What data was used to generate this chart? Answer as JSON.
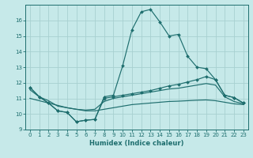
{
  "title": "",
  "xlabel": "Humidex (Indice chaleur)",
  "xlim": [
    -0.5,
    23.5
  ],
  "ylim": [
    9,
    17
  ],
  "yticks": [
    9,
    10,
    11,
    12,
    13,
    14,
    15,
    16
  ],
  "xticks": [
    0,
    1,
    2,
    3,
    4,
    5,
    6,
    7,
    8,
    9,
    10,
    11,
    12,
    13,
    14,
    15,
    16,
    17,
    18,
    19,
    20,
    21,
    22,
    23
  ],
  "bg_color": "#c6e9e9",
  "line_color": "#1e6e6e",
  "grid_color": "#b0d8d8",
  "series": [
    {
      "name": "peak_line",
      "x": [
        0,
        1,
        2,
        3,
        4,
        5,
        6,
        7,
        8,
        9,
        10,
        11,
        12,
        13,
        14,
        15,
        16,
        17,
        18,
        19,
        20,
        21,
        22,
        23
      ],
      "y": [
        11.7,
        11.1,
        10.7,
        10.2,
        10.1,
        9.5,
        9.6,
        9.65,
        11.1,
        11.2,
        13.1,
        15.4,
        16.55,
        16.7,
        15.9,
        15.0,
        15.1,
        13.7,
        13.0,
        12.9,
        12.2,
        11.2,
        11.05,
        10.7
      ],
      "marker": true
    },
    {
      "name": "rising_line",
      "x": [
        0,
        1,
        2,
        3,
        4,
        5,
        6,
        7,
        8,
        9,
        10,
        11,
        12,
        13,
        14,
        15,
        16,
        17,
        18,
        19,
        20,
        21,
        22,
        23
      ],
      "y": [
        11.7,
        11.1,
        10.7,
        10.2,
        10.1,
        9.5,
        9.6,
        9.65,
        11.0,
        11.1,
        11.2,
        11.3,
        11.4,
        11.5,
        11.65,
        11.8,
        11.9,
        12.05,
        12.2,
        12.4,
        12.2,
        11.2,
        11.05,
        10.7
      ],
      "marker": true
    },
    {
      "name": "smooth_upper",
      "x": [
        0,
        1,
        2,
        3,
        4,
        5,
        6,
        7,
        8,
        9,
        10,
        11,
        12,
        13,
        14,
        15,
        16,
        17,
        18,
        19,
        20,
        21,
        22,
        23
      ],
      "y": [
        11.55,
        11.1,
        10.85,
        10.5,
        10.4,
        10.3,
        10.25,
        10.3,
        10.8,
        11.0,
        11.1,
        11.2,
        11.3,
        11.4,
        11.5,
        11.6,
        11.65,
        11.75,
        11.85,
        11.95,
        11.85,
        11.1,
        10.8,
        10.65
      ],
      "marker": false
    },
    {
      "name": "smooth_lower",
      "x": [
        0,
        1,
        2,
        3,
        4,
        5,
        6,
        7,
        8,
        9,
        10,
        11,
        12,
        13,
        14,
        15,
        16,
        17,
        18,
        19,
        20,
        21,
        22,
        23
      ],
      "y": [
        11.0,
        10.85,
        10.7,
        10.55,
        10.4,
        10.3,
        10.2,
        10.2,
        10.3,
        10.4,
        10.5,
        10.6,
        10.65,
        10.7,
        10.75,
        10.8,
        10.82,
        10.85,
        10.88,
        10.9,
        10.85,
        10.75,
        10.65,
        10.6
      ],
      "marker": false
    }
  ]
}
